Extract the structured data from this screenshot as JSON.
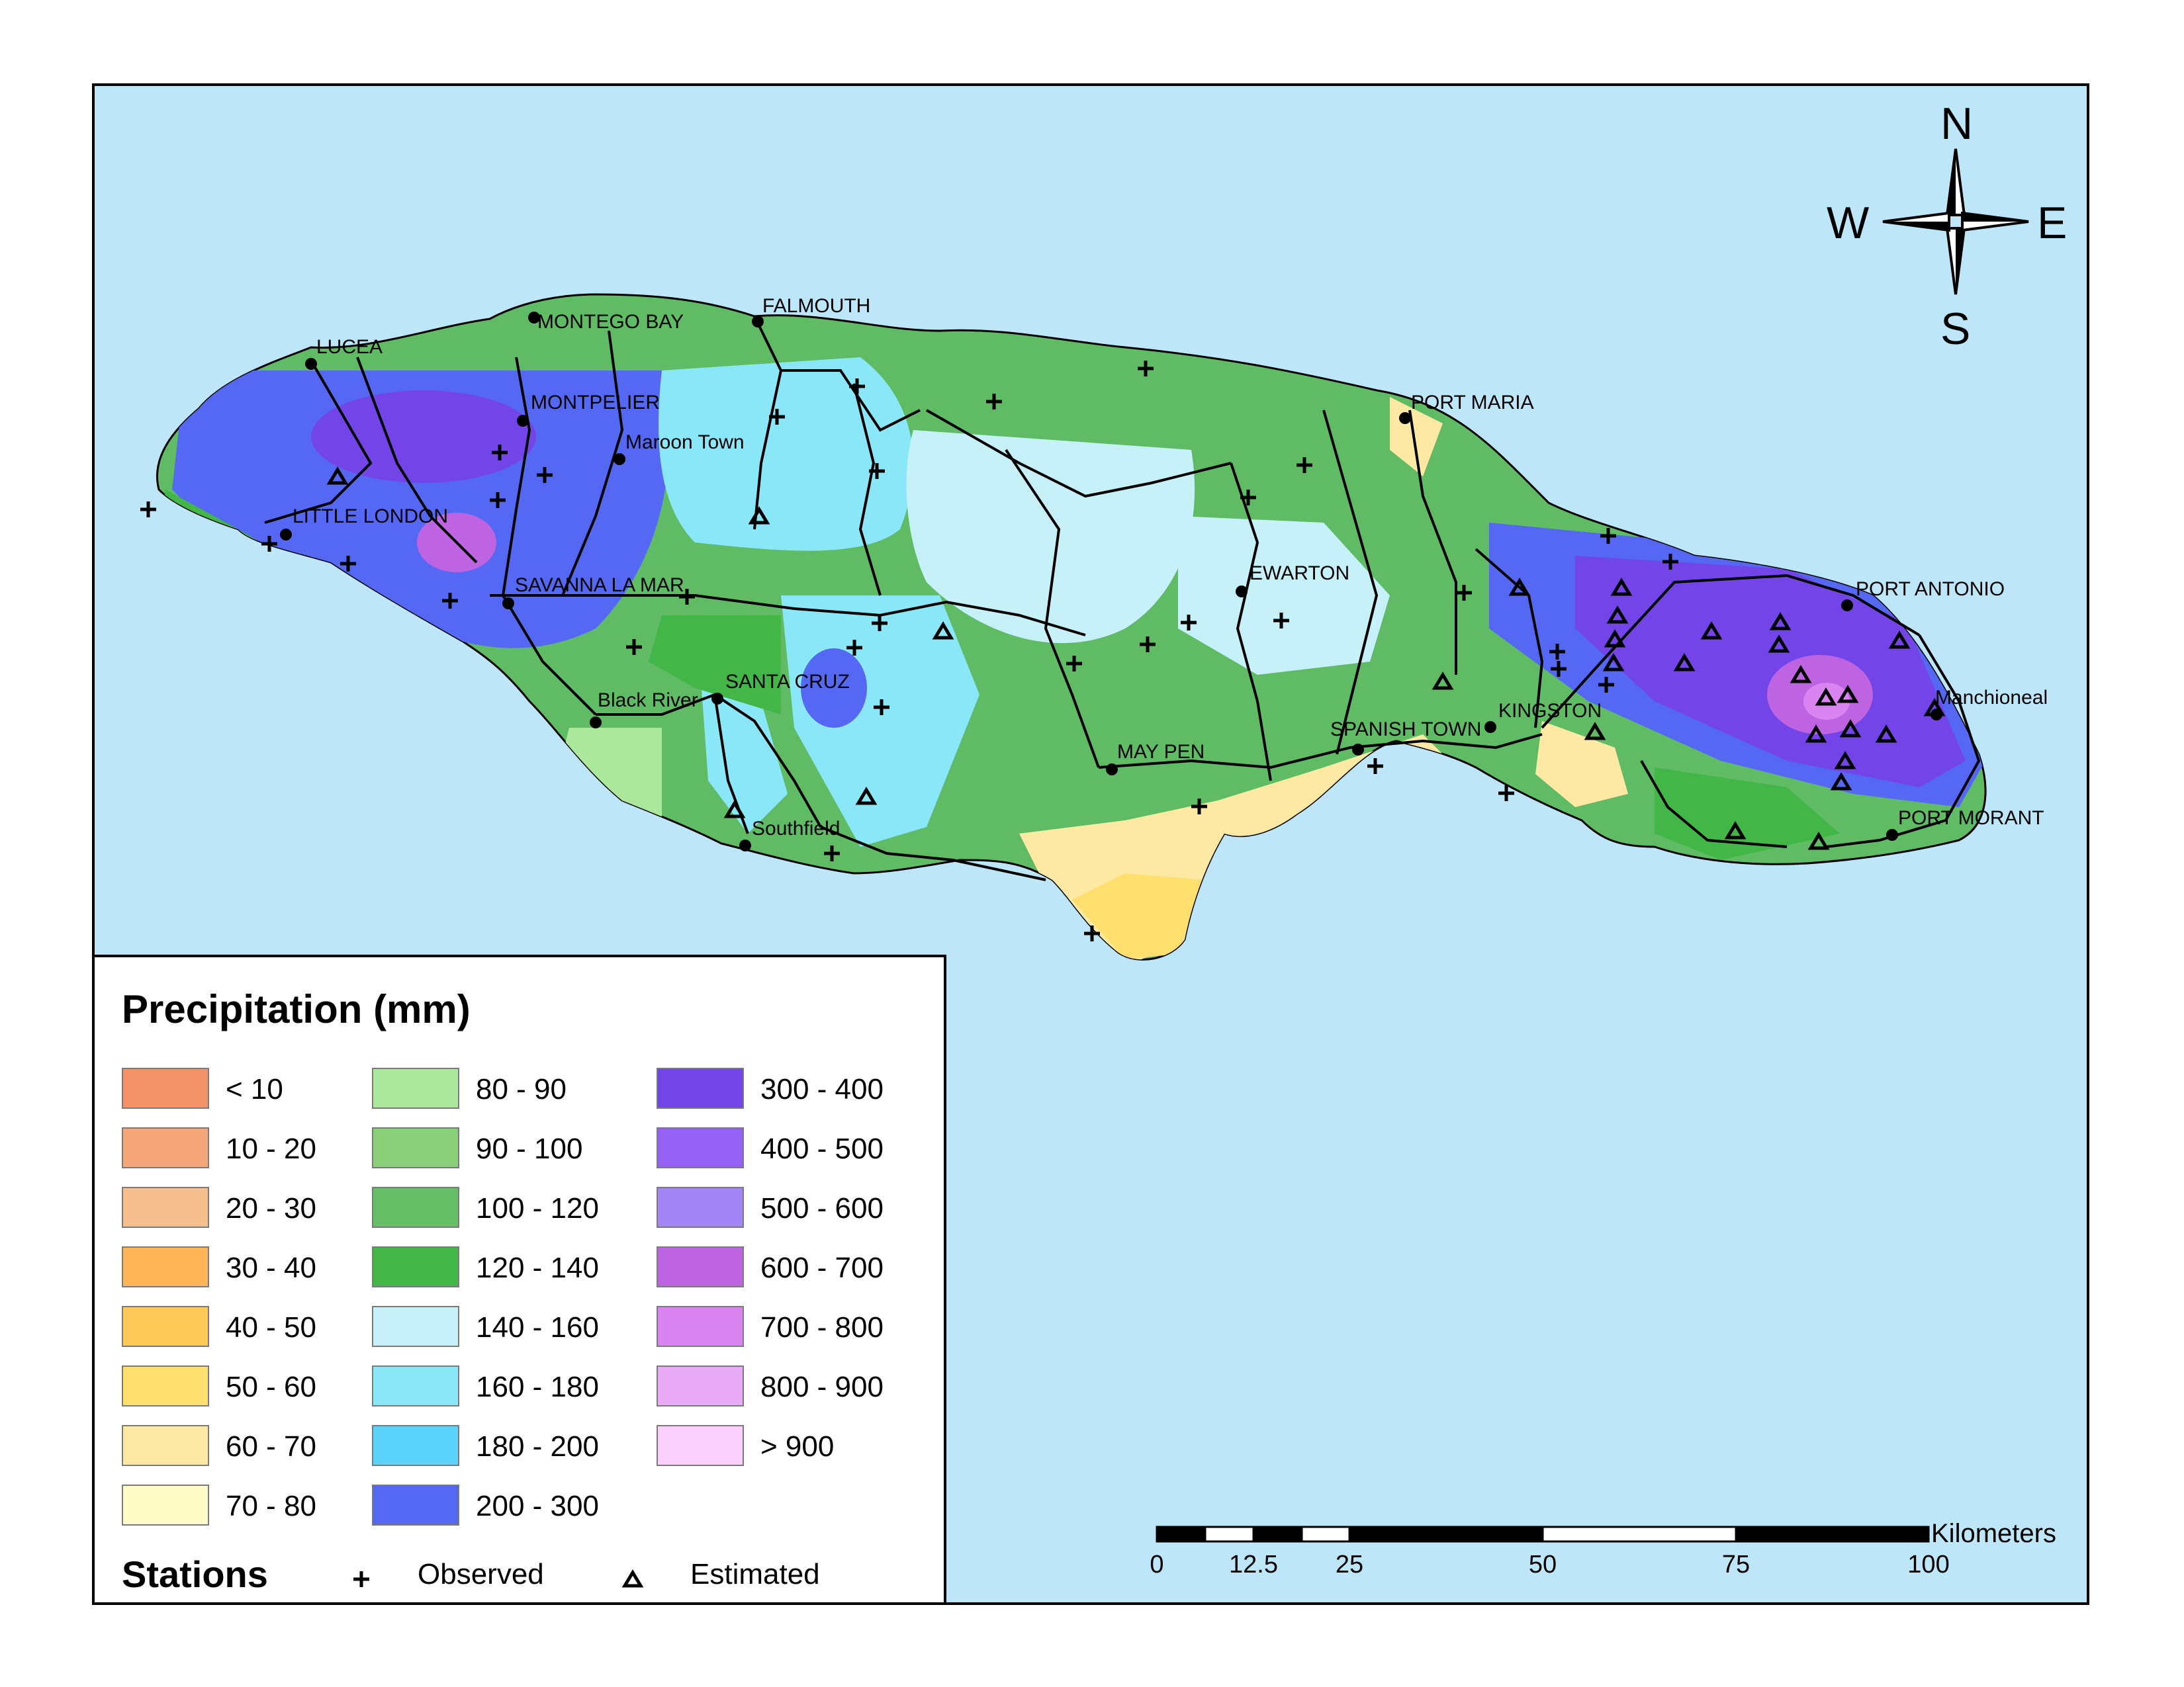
{
  "legend": {
    "title": "Precipitation (mm)",
    "classes": [
      {
        "label": "< 10",
        "color": "#f4926a"
      },
      {
        "label": "10 - 20",
        "color": "#f5a779"
      },
      {
        "label": "20 - 30",
        "color": "#f5c08e"
      },
      {
        "label": "30 - 40",
        "color": "#ffb457"
      },
      {
        "label": "40 - 50",
        "color": "#ffc857"
      },
      {
        "label": "50 - 60",
        "color": "#ffdf6e"
      },
      {
        "label": "60 - 70",
        "color": "#fde9a4"
      },
      {
        "label": "70 - 80",
        "color": "#fffcc8"
      },
      {
        "label": "80 - 90",
        "color": "#abe89b"
      },
      {
        "label": "90 - 100",
        "color": "#8ad07b"
      },
      {
        "label": "100 - 120",
        "color": "#66be66"
      },
      {
        "label": "120 - 140",
        "color": "#43b648"
      },
      {
        "label": "140 - 160",
        "color": "#c6f1f8"
      },
      {
        "label": "160 - 180",
        "color": "#89e7f7"
      },
      {
        "label": "180 - 200",
        "color": "#5ad2f9"
      },
      {
        "label": "200 - 300",
        "color": "#5468f3"
      },
      {
        "label": "300 - 400",
        "color": "#7345e9"
      },
      {
        "label": "400 - 500",
        "color": "#9560f6"
      },
      {
        "label": "500 - 600",
        "color": "#a385f6"
      },
      {
        "label": "600 - 700",
        "color": "#be64e3"
      },
      {
        "label": "700 - 800",
        "color": "#d984f1"
      },
      {
        "label": "800 - 900",
        "color": "#e9aaf8"
      },
      {
        "label": "> 900",
        "color": "#fcd0fc"
      }
    ],
    "stations_title": "Stations",
    "observed_label": "Observed",
    "estimated_label": "Estimated"
  },
  "compass": {
    "n": "N",
    "s": "S",
    "e": "E",
    "w": "W"
  },
  "scale": {
    "unit": "Kilometers",
    "ticks": [
      "0",
      "12.5",
      "25",
      "50",
      "75",
      "100"
    ]
  },
  "towns": {
    "falmouth": "FALMOUTH",
    "montego_bay": "MONTEGO BAY",
    "lucea": "LUCEA",
    "montpelier": "MONTPELIER",
    "maroon_town": "Maroon Town",
    "little_london": "LITTLE LONDON",
    "savanna_la_mar": "SAVANNA LA MAR",
    "black_river": "Black River",
    "santa_cruz": "SANTA CRUZ",
    "southfield": "Southfield",
    "may_pen": "MAY PEN",
    "spanish_town": "SPANISH TOWN",
    "kingston": "KINGSTON",
    "ewarton": "EWARTON",
    "port_maria": "PORT MARIA",
    "port_antonio": "PORT ANTONIO",
    "manchioneal": "Manchioneal",
    "port_morant": "PORT MORANT"
  },
  "colors": {
    "sea": "#bde6f9",
    "road": "#000000"
  }
}
